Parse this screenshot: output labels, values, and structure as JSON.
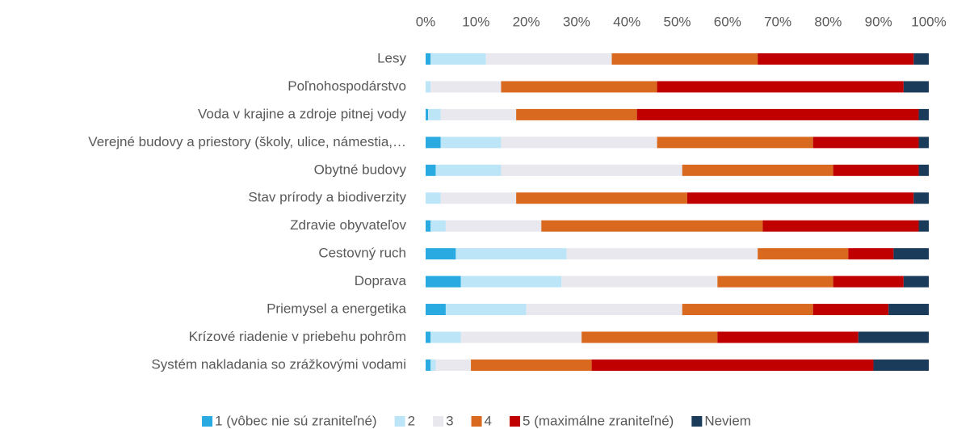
{
  "chart_data": {
    "type": "stacked_barh",
    "categories": [
      "Lesy",
      "Poľnohospodárstvo",
      "Voda v krajine a zdroje pitnej vody",
      "Verejné budovy a priestory (školy, ulice, námestia,…",
      "Obytné budovy",
      "Stav prírody a biodiverzity",
      "Zdravie obyvateľov",
      "Cestovný ruch",
      "Doprava",
      "Priemysel a energetika",
      "Krízové riadenie v priebehu pohrôm",
      "Systém nakladania so zrážkovými vodami"
    ],
    "series": [
      {
        "name": "1 (vôbec nie sú zraniteľné)",
        "color": "#29abe2",
        "values": [
          1,
          0,
          0.5,
          3,
          2,
          0,
          1,
          6,
          7,
          4,
          1,
          1
        ]
      },
      {
        "name": "2",
        "color": "#bde5f8",
        "values": [
          11,
          1,
          2.5,
          12,
          13,
          3,
          3,
          22,
          20,
          16,
          6,
          1
        ]
      },
      {
        "name": "3",
        "color": "#e8e8ee",
        "values": [
          25,
          14,
          15,
          31,
          36,
          15,
          19,
          38,
          31,
          31,
          24,
          7
        ]
      },
      {
        "name": "4",
        "color": "#d8691e",
        "values": [
          29,
          31,
          24,
          31,
          30,
          34,
          44,
          18,
          23,
          26,
          27,
          24
        ]
      },
      {
        "name": "5 (maximálne zraniteľné)",
        "color": "#c00000",
        "values": [
          31,
          49,
          56,
          21,
          17,
          45,
          31,
          9,
          14,
          15,
          28,
          56
        ]
      },
      {
        "name": "Neviem",
        "color": "#1b3b5a",
        "values": [
          3,
          5,
          2,
          2,
          2,
          3,
          2,
          7,
          5,
          8,
          14,
          11
        ]
      }
    ],
    "xlim": [
      0,
      100
    ],
    "xticks": [
      {
        "value": 0,
        "label": "0%"
      },
      {
        "value": 10,
        "label": "10%"
      },
      {
        "value": 20,
        "label": "20%"
      },
      {
        "value": 30,
        "label": "30%"
      },
      {
        "value": 40,
        "label": "40%"
      },
      {
        "value": 50,
        "label": "50%"
      },
      {
        "value": 60,
        "label": "60%"
      },
      {
        "value": 70,
        "label": "70%"
      },
      {
        "value": 80,
        "label": "80%"
      },
      {
        "value": 90,
        "label": "90%"
      },
      {
        "value": 100,
        "label": "100%"
      }
    ],
    "grid": false,
    "legend": "bottom"
  }
}
